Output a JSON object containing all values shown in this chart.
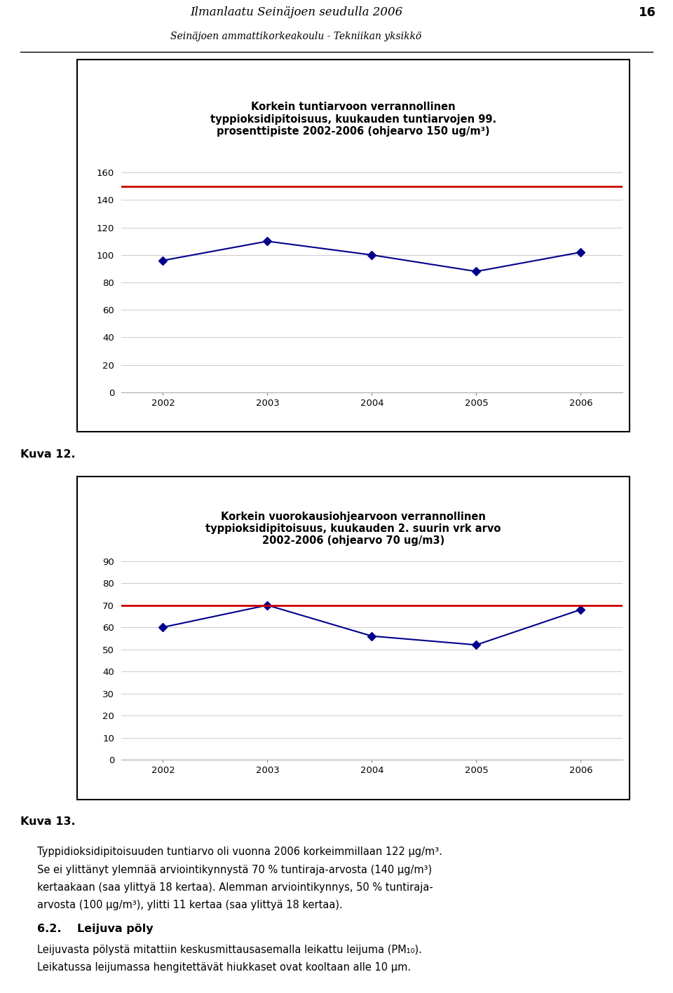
{
  "header_title": "Ilmanlaatu Seinäjoen seudulla 2006",
  "header_subtitle": "Seinäjoen ammattikorkeakoulu - Tekniikan yksikkö",
  "page_number": "16",
  "chart1": {
    "title": "Korkein tuntiarvoon verrannollinen\ntyppioksidipitoisuus, kuukauden tuntiarvojen 99.\nprosenttipiste 2002-2006 (ohjearvo 150 ug/m³)",
    "years": [
      2002,
      2003,
      2004,
      2005,
      2006
    ],
    "values": [
      96,
      110,
      100,
      88,
      102
    ],
    "ref_line": 150,
    "ylim": [
      0,
      170
    ],
    "yticks": [
      0,
      20,
      40,
      60,
      80,
      100,
      120,
      140,
      160
    ],
    "line_color": "#00008B",
    "ref_color": "#CC0000"
  },
  "kuva12": "Kuva 12.",
  "chart2": {
    "title": "Korkein vuorokausiohjearvoon verrannollinen\ntyppioksidipitoisuus, kuukauden 2. suurin vrk arvo\n2002-2006 (ohjearvo 70 ug/m3)",
    "years": [
      2002,
      2003,
      2004,
      2005,
      2006
    ],
    "values": [
      60,
      70,
      56,
      52,
      68
    ],
    "ref_line": 70,
    "ylim": [
      0,
      90
    ],
    "yticks": [
      0,
      10,
      20,
      30,
      40,
      50,
      60,
      70,
      80,
      90
    ],
    "line_color": "#00008B",
    "ref_color": "#CC0000"
  },
  "kuva13": "Kuva 13.",
  "para1": "Typpidioksidipitoisuuden tuntiarvo oli vuonna 2006 korkeimmillaan 122 μg/m³. Se ei ylittänyt ylemпää arviointikynnystä 70 % tuntiraja-arvosta (140 μg/m³) kertaakaan (saa ylittyä 18 kertaa). Alemman arviointikynnys, 50 % tuntiraja-arvosta (100 μg/m³), ylitti 11 kertaa (saa ylittyä 18 kertaa).",
  "section_num": "6.2.",
  "section_name": "Leijuva pöly",
  "section_body": "Leijuvasta pölystä mitattiin keskusmittausasemalla leikattu leijuma (PM₁₀). Leikatussa leijumassa hengitettävät hiukkaset ovat kooltaan alle 10 μm."
}
